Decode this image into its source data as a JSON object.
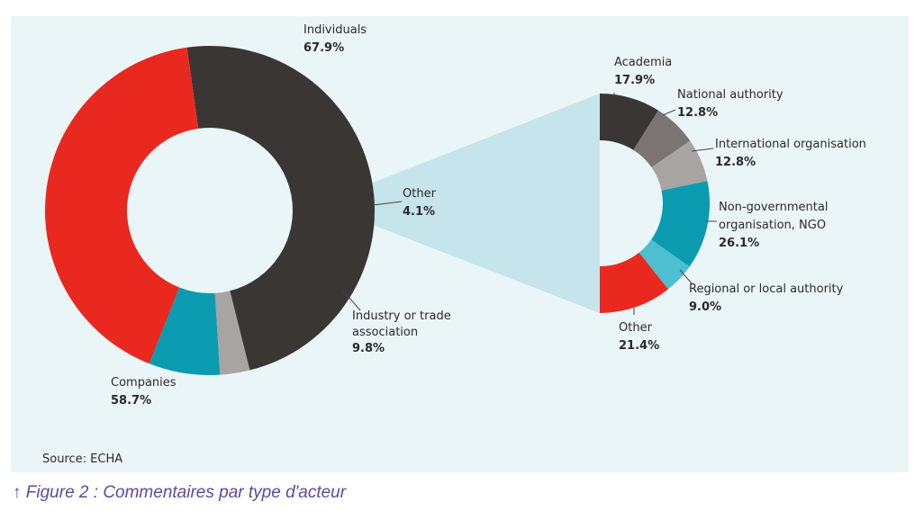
{
  "chart_data": [
    {
      "type": "donut",
      "slices": [
        {
          "label": "Individuals",
          "value": 67.9,
          "value_text": "67.9%",
          "color": "#3a3633"
        },
        {
          "label": "Other",
          "value": 4.1,
          "value_text": "4.1%",
          "color": "#a7a4a2"
        },
        {
          "label": "Industry or trade association",
          "value": 9.8,
          "value_text": "9.8%",
          "color": "#0a9bb1"
        },
        {
          "label": "Companies",
          "value": 58.7,
          "value_text": "58.7%",
          "color": "#e9281f"
        }
      ]
    },
    {
      "type": "half-donut",
      "expands": "Other",
      "slices": [
        {
          "label": "Academia",
          "value": 17.9,
          "value_text": "17.9%",
          "color": "#3a3633"
        },
        {
          "label": "National authority",
          "value": 12.8,
          "value_text": "12.8%",
          "color": "#7a7572"
        },
        {
          "label": "International organisation",
          "value": 12.8,
          "value_text": "12.8%",
          "color": "#a7a4a2"
        },
        {
          "label": "Non-governmental organisation, NGO",
          "value": 26.1,
          "value_text": "26.1%",
          "color": "#0a9bb1"
        },
        {
          "label": "Regional or local authority",
          "value": 9.0,
          "value_text": "9.0%",
          "color": "#4cbfd0"
        },
        {
          "label": "Other",
          "value": 21.4,
          "value_text": "21.4%",
          "color": "#e9281f"
        }
      ]
    }
  ],
  "labels": {
    "individuals": {
      "name": "Individuals",
      "value": "67.9%"
    },
    "other_left": {
      "name": "Other",
      "value": "4.1%"
    },
    "industry": {
      "name1": "Industry or trade",
      "name2": "association",
      "value": "9.8%"
    },
    "companies": {
      "name": "Companies",
      "value": "58.7%"
    },
    "academia": {
      "name": "Academia",
      "value": "17.9%"
    },
    "national": {
      "name": "National authority",
      "value": "12.8%"
    },
    "international": {
      "name": "International organisation",
      "value": "12.8%"
    },
    "ngo": {
      "name1": "Non-governmental",
      "name2": "organisation, NGO",
      "value": "26.1%"
    },
    "regional": {
      "name": "Regional or local authority",
      "value": "9.0%"
    },
    "other_right": {
      "name": "Other",
      "value": "21.4%"
    }
  },
  "source": "Source: ECHA",
  "caption": "↑ Figure 2 : Commentaires par type d'acteur",
  "colors": {
    "panel": "#eaf5f7",
    "connector": "#c5e4eb",
    "caption": "#5b4a9e"
  }
}
